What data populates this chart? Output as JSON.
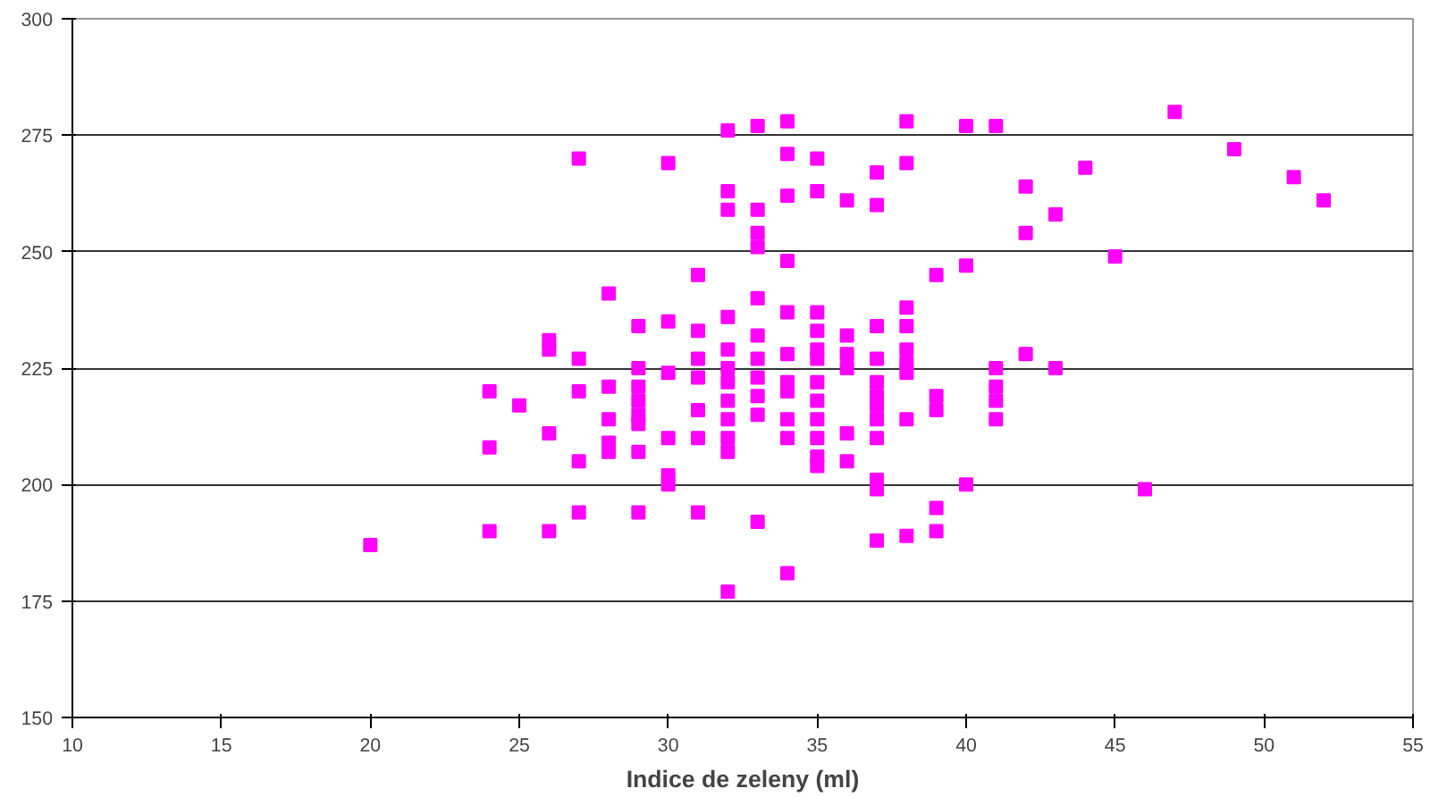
{
  "chart_data": {
    "type": "scatter",
    "xlabel": "Indice de zeleny (ml)",
    "xlim": [
      10,
      55
    ],
    "xticks": [
      10,
      15,
      20,
      25,
      30,
      35,
      40,
      45,
      50,
      55
    ],
    "ylim": [
      150,
      300
    ],
    "yticks": [
      150,
      175,
      200,
      225,
      250,
      275,
      300
    ],
    "grid": "y",
    "marker": "square",
    "series": [
      {
        "color": "#ff00ff",
        "x": [
          20,
          24,
          24,
          24,
          25,
          26,
          26,
          26,
          26,
          27,
          27,
          27,
          27,
          27,
          28,
          28,
          28,
          28,
          28,
          29,
          29,
          29,
          29,
          29,
          29,
          29,
          29,
          30,
          30,
          30,
          30,
          30,
          30,
          31,
          31,
          31,
          31,
          31,
          31,
          31,
          32,
          32,
          32,
          32,
          32,
          32,
          32,
          32,
          32,
          32,
          32,
          32,
          33,
          33,
          33,
          33,
          33,
          33,
          33,
          33,
          33,
          33,
          33,
          34,
          34,
          34,
          34,
          34,
          34,
          34,
          34,
          34,
          34,
          34,
          35,
          35,
          35,
          35,
          35,
          35,
          35,
          35,
          35,
          35,
          35,
          35,
          36,
          36,
          36,
          36,
          36,
          36,
          37,
          37,
          37,
          37,
          37,
          37,
          37,
          37,
          37,
          37,
          37,
          37,
          38,
          38,
          38,
          38,
          38,
          38,
          38,
          38,
          38,
          39,
          39,
          39,
          39,
          39,
          40,
          40,
          40,
          41,
          41,
          41,
          41,
          41,
          42,
          42,
          42,
          43,
          43,
          44,
          45,
          46,
          47,
          49,
          51,
          52
        ],
        "values": [
          187,
          220,
          208,
          190,
          217,
          231,
          229,
          211,
          190,
          270,
          227,
          220,
          205,
          194,
          241,
          221,
          214,
          209,
          207,
          234,
          225,
          221,
          218,
          215,
          213,
          207,
          194,
          269,
          235,
          224,
          210,
          202,
          200,
          245,
          233,
          227,
          223,
          216,
          210,
          194,
          276,
          263,
          259,
          236,
          229,
          225,
          222,
          218,
          214,
          210,
          207,
          177,
          277,
          259,
          254,
          251,
          240,
          232,
          227,
          223,
          219,
          215,
          192,
          278,
          271,
          262,
          248,
          237,
          228,
          222,
          220,
          214,
          210,
          181,
          270,
          263,
          237,
          233,
          229,
          227,
          222,
          218,
          214,
          210,
          206,
          204,
          261,
          232,
          228,
          225,
          211,
          205,
          267,
          260,
          234,
          227,
          222,
          219,
          217,
          214,
          210,
          201,
          199,
          188,
          278,
          269,
          238,
          234,
          229,
          226,
          224,
          214,
          189,
          245,
          219,
          216,
          195,
          190,
          277,
          247,
          200,
          277,
          225,
          221,
          218,
          214,
          264,
          254,
          228,
          258,
          225,
          268,
          249,
          199,
          280,
          272,
          266,
          261
        ]
      }
    ]
  }
}
